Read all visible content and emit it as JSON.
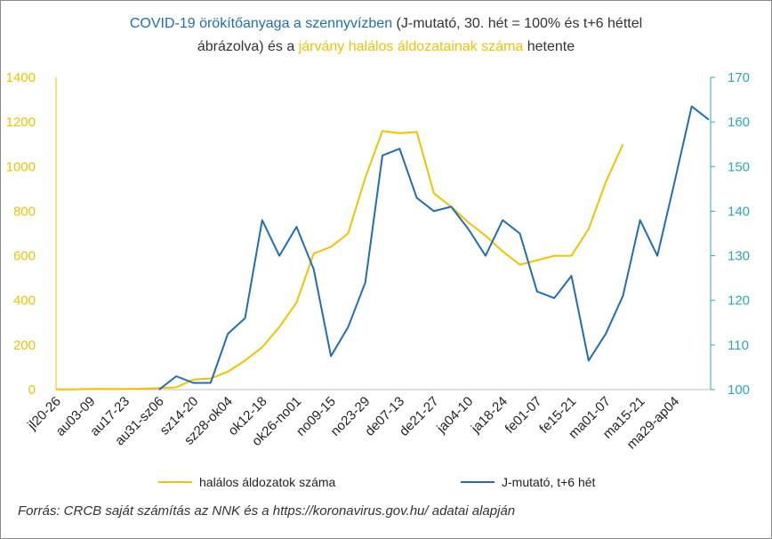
{
  "title": {
    "part1": "COVID-19 örökítőanyaga a szennyvízben",
    "part2": " (J-mutató, 30. hét = 100% és t+6 héttel",
    "part3": "ábrázolva) és a ",
    "part4": "járvány halálos áldozatainak száma",
    "part5": " hetente"
  },
  "colors": {
    "deaths": "#f2c200",
    "jindex": "#1f6eb5",
    "right_axis": "#2aa8b8",
    "left_axis": "#f2c200"
  },
  "chart_data": {
    "type": "line",
    "categories": [
      "jl20-26",
      "",
      "au03-09",
      "",
      "au17-23",
      "",
      "au31-sz06",
      "",
      "sz14-20",
      "",
      "sz28-ok04",
      "",
      "ok12-18",
      "",
      "ok26-no01",
      "",
      "no09-15",
      "",
      "no23-29",
      "",
      "de07-13",
      "",
      "de21-27",
      "",
      "ja04-10",
      "",
      "ja18-24",
      "",
      "fe01-07",
      "",
      "fe15-21",
      "",
      "ma01-07",
      "",
      "ma15-21",
      "",
      "ma29-ap04",
      "",
      ""
    ],
    "tick_labels": [
      "jl20-26",
      "au03-09",
      "au17-23",
      "au31-sz06",
      "sz14-20",
      "sz28-ok04",
      "ok12-18",
      "ok26-no01",
      "no09-15",
      "no23-29",
      "de07-13",
      "de21-27",
      "ja04-10",
      "ja18-24",
      "fe01-07",
      "fe15-21",
      "ma01-07",
      "ma15-21",
      "ma29-ap04"
    ],
    "left_axis": {
      "min": 0,
      "max": 1400,
      "ticks": [
        "0",
        "200",
        "400",
        "600",
        "800",
        "1000",
        "1200",
        "1400"
      ]
    },
    "right_axis": {
      "min": 100,
      "max": 170,
      "ticks": [
        "100",
        "110",
        "120",
        "130",
        "140",
        "150",
        "160",
        "170"
      ]
    },
    "series": [
      {
        "name": "halálos áldozatok száma",
        "axis": "left",
        "values": [
          1,
          1,
          3,
          3,
          3,
          4,
          7,
          10,
          45,
          50,
          80,
          130,
          190,
          280,
          390,
          610,
          640,
          700,
          950,
          1160,
          1150,
          1155,
          880,
          820,
          750,
          690,
          620,
          560,
          580,
          600,
          600,
          720,
          930,
          1100,
          null,
          null,
          null,
          null,
          null
        ]
      },
      {
        "name": "J-mutató, t+6 hét",
        "axis": "right",
        "values": [
          null,
          null,
          null,
          null,
          null,
          null,
          100,
          103,
          101.5,
          101.5,
          112.5,
          116,
          138,
          130,
          136.5,
          127,
          107.5,
          114,
          124,
          152.5,
          154,
          143,
          140,
          141,
          136,
          130,
          138,
          135,
          122,
          120.5,
          125.5,
          106.5,
          112.5,
          121,
          138,
          130,
          146.5,
          163.5,
          160.5
        ]
      }
    ]
  },
  "legend": {
    "deaths": "halálos áldozatok száma",
    "jindex": "J-mutató, t+6 hét"
  },
  "source": "Forrás: CRCB saját számítás az NNK és a https://koronavirus.gov.hu/ adatai alapján"
}
